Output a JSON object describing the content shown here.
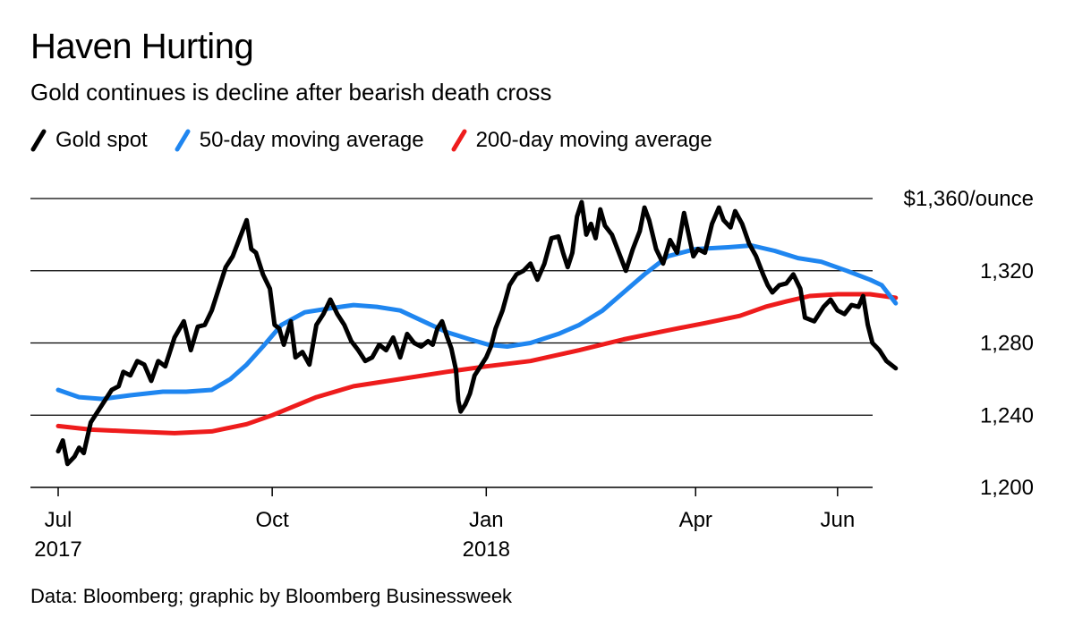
{
  "title": "Haven Hurting",
  "subtitle": "Gold continues is decline after bearish death cross",
  "source": "Data: Bloomberg; graphic by Bloomberg Businessweek",
  "chart_data": {
    "type": "line",
    "title": "Haven Hurting",
    "subtitle": "Gold continues is decline after bearish death cross",
    "ylabel": "",
    "ylim": [
      1200,
      1360
    ],
    "grid": "horizontal",
    "y_ticks": [
      {
        "value": 1360,
        "label": "$1,360/ounce"
      },
      {
        "value": 1320,
        "label": "1,320"
      },
      {
        "value": 1280,
        "label": "1,280"
      },
      {
        "value": 1240,
        "label": "1,240"
      },
      {
        "value": 1200,
        "label": "1,200"
      }
    ],
    "x_ticks": [
      {
        "date": "2017-07-01",
        "label": "Jul",
        "sublabel": "2017"
      },
      {
        "date": "2017-10-01",
        "label": "Oct",
        "sublabel": ""
      },
      {
        "date": "2018-01-01",
        "label": "Jan",
        "sublabel": "2018"
      },
      {
        "date": "2018-04-01",
        "label": "Apr",
        "sublabel": ""
      },
      {
        "date": "2018-06-01",
        "label": "Jun",
        "sublabel": ""
      }
    ],
    "legend_position": "top-left",
    "series": [
      {
        "name": "Gold spot",
        "color": "#000000",
        "points": [
          [
            "2017-07-01",
            1220
          ],
          [
            "2017-07-03",
            1226
          ],
          [
            "2017-07-05",
            1213
          ],
          [
            "2017-07-08",
            1217
          ],
          [
            "2017-07-10",
            1222
          ],
          [
            "2017-07-12",
            1219
          ],
          [
            "2017-07-15",
            1236
          ],
          [
            "2017-07-18",
            1242
          ],
          [
            "2017-07-21",
            1248
          ],
          [
            "2017-07-24",
            1254
          ],
          [
            "2017-07-27",
            1256
          ],
          [
            "2017-07-29",
            1264
          ],
          [
            "2017-08-01",
            1262
          ],
          [
            "2017-08-04",
            1270
          ],
          [
            "2017-08-07",
            1268
          ],
          [
            "2017-08-10",
            1259
          ],
          [
            "2017-08-13",
            1270
          ],
          [
            "2017-08-16",
            1267
          ],
          [
            "2017-08-20",
            1283
          ],
          [
            "2017-08-24",
            1292
          ],
          [
            "2017-08-27",
            1276
          ],
          [
            "2017-08-30",
            1289
          ],
          [
            "2017-09-02",
            1290
          ],
          [
            "2017-09-05",
            1298
          ],
          [
            "2017-09-08",
            1310
          ],
          [
            "2017-09-11",
            1322
          ],
          [
            "2017-09-14",
            1328
          ],
          [
            "2017-09-17",
            1338
          ],
          [
            "2017-09-20",
            1348
          ],
          [
            "2017-09-22",
            1332
          ],
          [
            "2017-09-24",
            1330
          ],
          [
            "2017-09-27",
            1318
          ],
          [
            "2017-09-30",
            1310
          ],
          [
            "2017-10-02",
            1290
          ],
          [
            "2017-10-04",
            1288
          ],
          [
            "2017-10-06",
            1279
          ],
          [
            "2017-10-09",
            1292
          ],
          [
            "2017-10-11",
            1272
          ],
          [
            "2017-10-14",
            1275
          ],
          [
            "2017-10-17",
            1268
          ],
          [
            "2017-10-20",
            1290
          ],
          [
            "2017-10-23",
            1296
          ],
          [
            "2017-10-26",
            1304
          ],
          [
            "2017-10-29",
            1296
          ],
          [
            "2017-11-01",
            1290
          ],
          [
            "2017-11-04",
            1281
          ],
          [
            "2017-11-07",
            1276
          ],
          [
            "2017-11-10",
            1270
          ],
          [
            "2017-11-13",
            1272
          ],
          [
            "2017-11-16",
            1279
          ],
          [
            "2017-11-19",
            1276
          ],
          [
            "2017-11-22",
            1283
          ],
          [
            "2017-11-25",
            1272
          ],
          [
            "2017-11-28",
            1285
          ],
          [
            "2017-12-01",
            1280
          ],
          [
            "2017-12-04",
            1278
          ],
          [
            "2017-12-07",
            1281
          ],
          [
            "2017-12-09",
            1279
          ],
          [
            "2017-12-11",
            1288
          ],
          [
            "2017-12-13",
            1292
          ],
          [
            "2017-12-15",
            1284
          ],
          [
            "2017-12-17",
            1277
          ],
          [
            "2017-12-19",
            1265
          ],
          [
            "2017-12-20",
            1248
          ],
          [
            "2017-12-21",
            1242
          ],
          [
            "2017-12-23",
            1246
          ],
          [
            "2017-12-25",
            1252
          ],
          [
            "2017-12-27",
            1262
          ],
          [
            "2017-12-29",
            1266
          ],
          [
            "2018-01-01",
            1272
          ],
          [
            "2018-01-03",
            1278
          ],
          [
            "2018-01-05",
            1288
          ],
          [
            "2018-01-08",
            1298
          ],
          [
            "2018-01-11",
            1312
          ],
          [
            "2018-01-14",
            1318
          ],
          [
            "2018-01-17",
            1320
          ],
          [
            "2018-01-20",
            1324
          ],
          [
            "2018-01-23",
            1315
          ],
          [
            "2018-01-26",
            1324
          ],
          [
            "2018-01-29",
            1338
          ],
          [
            "2018-02-01",
            1339
          ],
          [
            "2018-02-03",
            1330
          ],
          [
            "2018-02-05",
            1322
          ],
          [
            "2018-02-07",
            1330
          ],
          [
            "2018-02-09",
            1350
          ],
          [
            "2018-02-11",
            1358
          ],
          [
            "2018-02-13",
            1340
          ],
          [
            "2018-02-15",
            1346
          ],
          [
            "2018-02-17",
            1338
          ],
          [
            "2018-02-19",
            1354
          ],
          [
            "2018-02-21",
            1345
          ],
          [
            "2018-02-24",
            1340
          ],
          [
            "2018-02-27",
            1330
          ],
          [
            "2018-03-02",
            1320
          ],
          [
            "2018-03-05",
            1332
          ],
          [
            "2018-03-08",
            1342
          ],
          [
            "2018-03-10",
            1355
          ],
          [
            "2018-03-12",
            1348
          ],
          [
            "2018-03-15",
            1332
          ],
          [
            "2018-03-18",
            1324
          ],
          [
            "2018-03-21",
            1337
          ],
          [
            "2018-03-24",
            1330
          ],
          [
            "2018-03-27",
            1352
          ],
          [
            "2018-03-29",
            1340
          ],
          [
            "2018-03-31",
            1328
          ],
          [
            "2018-04-02",
            1332
          ],
          [
            "2018-04-05",
            1330
          ],
          [
            "2018-04-08",
            1346
          ],
          [
            "2018-04-11",
            1355
          ],
          [
            "2018-04-13",
            1348
          ],
          [
            "2018-04-16",
            1344
          ],
          [
            "2018-04-18",
            1353
          ],
          [
            "2018-04-21",
            1346
          ],
          [
            "2018-04-24",
            1335
          ],
          [
            "2018-04-27",
            1328
          ],
          [
            "2018-04-30",
            1318
          ],
          [
            "2018-05-02",
            1312
          ],
          [
            "2018-05-04",
            1308
          ],
          [
            "2018-05-07",
            1312
          ],
          [
            "2018-05-10",
            1313
          ],
          [
            "2018-05-13",
            1318
          ],
          [
            "2018-05-16",
            1310
          ],
          [
            "2018-05-18",
            1294
          ],
          [
            "2018-05-22",
            1292
          ],
          [
            "2018-05-26",
            1300
          ],
          [
            "2018-05-29",
            1304
          ],
          [
            "2018-06-01",
            1298
          ],
          [
            "2018-06-04",
            1296
          ],
          [
            "2018-06-07",
            1301
          ],
          [
            "2018-06-10",
            1300
          ],
          [
            "2018-06-12",
            1306
          ],
          [
            "2018-06-14",
            1290
          ],
          [
            "2018-06-16",
            1280
          ],
          [
            "2018-06-19",
            1276
          ],
          [
            "2018-06-22",
            1270
          ],
          [
            "2018-06-26",
            1266
          ]
        ]
      },
      {
        "name": "50-day moving average",
        "color": "#1f86f0",
        "points": [
          [
            "2017-07-01",
            1254
          ],
          [
            "2017-07-10",
            1250
          ],
          [
            "2017-07-20",
            1249
          ],
          [
            "2017-08-01",
            1251
          ],
          [
            "2017-08-15",
            1253
          ],
          [
            "2017-08-25",
            1253
          ],
          [
            "2017-09-05",
            1254
          ],
          [
            "2017-09-13",
            1260
          ],
          [
            "2017-09-20",
            1268
          ],
          [
            "2017-09-27",
            1278
          ],
          [
            "2017-10-05",
            1290
          ],
          [
            "2017-10-15",
            1297
          ],
          [
            "2017-10-25",
            1299
          ],
          [
            "2017-11-05",
            1301
          ],
          [
            "2017-11-15",
            1300
          ],
          [
            "2017-11-25",
            1298
          ],
          [
            "2017-12-05",
            1292
          ],
          [
            "2017-12-15",
            1286
          ],
          [
            "2017-12-25",
            1282
          ],
          [
            "2018-01-02",
            1279
          ],
          [
            "2018-01-10",
            1278
          ],
          [
            "2018-01-20",
            1280
          ],
          [
            "2018-02-01",
            1285
          ],
          [
            "2018-02-10",
            1290
          ],
          [
            "2018-02-20",
            1298
          ],
          [
            "2018-03-01",
            1308
          ],
          [
            "2018-03-10",
            1318
          ],
          [
            "2018-03-20",
            1328
          ],
          [
            "2018-04-01",
            1332
          ],
          [
            "2018-04-15",
            1333
          ],
          [
            "2018-04-25",
            1334
          ],
          [
            "2018-05-05",
            1331
          ],
          [
            "2018-05-15",
            1327
          ],
          [
            "2018-05-25",
            1325
          ],
          [
            "2018-06-05",
            1320
          ],
          [
            "2018-06-15",
            1315
          ],
          [
            "2018-06-20",
            1312
          ],
          [
            "2018-06-26",
            1302
          ]
        ]
      },
      {
        "name": "200-day moving average",
        "color": "#ee1c1c",
        "points": [
          [
            "2017-07-01",
            1234
          ],
          [
            "2017-07-15",
            1232
          ],
          [
            "2017-08-01",
            1231
          ],
          [
            "2017-08-20",
            1230
          ],
          [
            "2017-09-05",
            1231
          ],
          [
            "2017-09-20",
            1235
          ],
          [
            "2017-10-01",
            1240
          ],
          [
            "2017-10-20",
            1250
          ],
          [
            "2017-11-05",
            1256
          ],
          [
            "2017-11-25",
            1260
          ],
          [
            "2017-12-15",
            1264
          ],
          [
            "2018-01-01",
            1267
          ],
          [
            "2018-01-20",
            1270
          ],
          [
            "2018-02-10",
            1276
          ],
          [
            "2018-03-01",
            1282
          ],
          [
            "2018-03-20",
            1287
          ],
          [
            "2018-04-05",
            1291
          ],
          [
            "2018-04-20",
            1295
          ],
          [
            "2018-05-01",
            1300
          ],
          [
            "2018-05-10",
            1303
          ],
          [
            "2018-05-20",
            1306
          ],
          [
            "2018-06-01",
            1307
          ],
          [
            "2018-06-15",
            1307
          ],
          [
            "2018-06-26",
            1305
          ]
        ]
      }
    ]
  }
}
